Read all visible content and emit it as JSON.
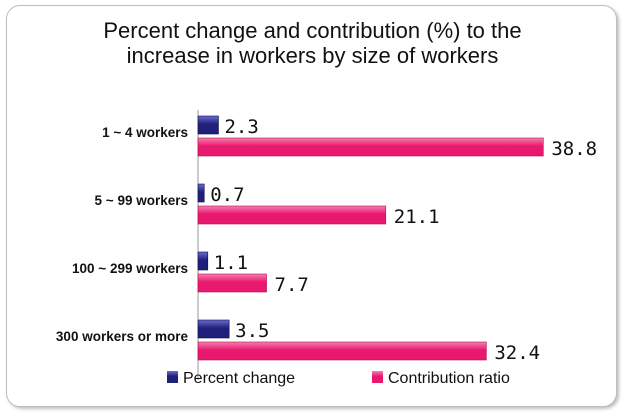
{
  "chart_data": {
    "type": "bar",
    "orientation": "horizontal",
    "title": "Percent change and contribution (%) to the increase in workers by size of workers",
    "title_lines": [
      "Percent change and contribution (%) to the",
      "increase in workers by size of workers"
    ],
    "categories": [
      "1 ~ 4 workers",
      "5 ~ 99 workers",
      "100 ~ 299 workers",
      "300 workers or more"
    ],
    "series": [
      {
        "name": "Percent change",
        "values": [
          2.3,
          0.7,
          1.1,
          3.5
        ],
        "color": "#20207a"
      },
      {
        "name": "Contribution ratio",
        "values": [
          38.8,
          21.1,
          7.7,
          32.4
        ],
        "color": "#e8186e"
      }
    ],
    "value_labels": [
      [
        "2.3",
        "0.7",
        "1.1",
        "3.5"
      ],
      [
        "38.8",
        "21.1",
        "7.7",
        "32.4"
      ]
    ],
    "xlim": [
      0,
      40
    ],
    "grid": false,
    "legend_position": "bottom"
  }
}
